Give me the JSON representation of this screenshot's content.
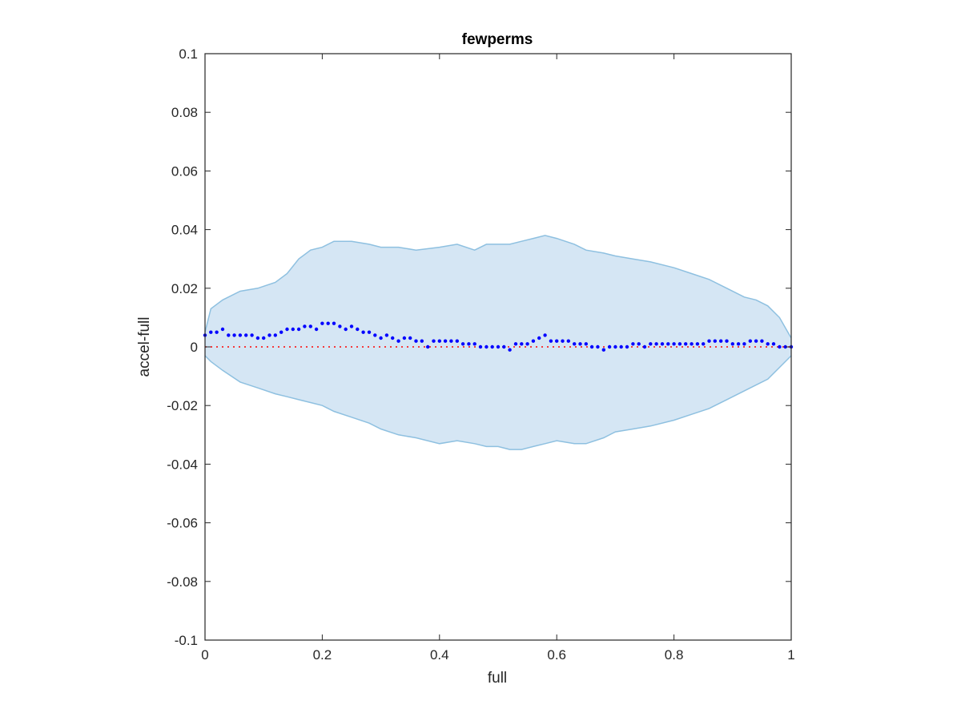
{
  "chart_data": {
    "type": "scatter",
    "title": "fewperms",
    "xlabel": "full",
    "ylabel": "accel-full",
    "xlim": [
      0,
      1
    ],
    "ylim": [
      -0.1,
      0.1
    ],
    "xticks": [
      0,
      0.2,
      0.4,
      0.6,
      0.8,
      1
    ],
    "xtick_labels": [
      "0",
      "0.2",
      "0.4",
      "0.6",
      "0.8",
      "1"
    ],
    "yticks": [
      0.1,
      0.08,
      0.06,
      0.04,
      0.02,
      0,
      -0.02,
      -0.04,
      -0.06,
      -0.08,
      -0.1
    ],
    "ytick_labels": [
      "0.1",
      "0.08",
      "0.06",
      "0.04",
      "0.02",
      "0",
      "-0.02",
      "-0.04",
      "-0.06",
      "-0.08",
      "-0.1"
    ],
    "grid": false,
    "legend": "none",
    "colors": {
      "points": "#0000ff",
      "band_fill": "#d5e6f4",
      "band_edge": "#8ec0e0",
      "reference_line": "#ff0000",
      "axes": "#262626"
    },
    "reference_line": {
      "y": 0,
      "style": "dotted"
    },
    "envelope": {
      "x": [
        0.0,
        0.01,
        0.03,
        0.06,
        0.09,
        0.12,
        0.14,
        0.16,
        0.18,
        0.2,
        0.22,
        0.25,
        0.28,
        0.3,
        0.33,
        0.36,
        0.4,
        0.43,
        0.46,
        0.48,
        0.5,
        0.52,
        0.54,
        0.56,
        0.58,
        0.6,
        0.63,
        0.65,
        0.68,
        0.7,
        0.73,
        0.76,
        0.8,
        0.83,
        0.86,
        0.89,
        0.92,
        0.94,
        0.96,
        0.98,
        1.0
      ],
      "upper": [
        0.005,
        0.013,
        0.016,
        0.019,
        0.02,
        0.022,
        0.025,
        0.03,
        0.033,
        0.034,
        0.036,
        0.036,
        0.035,
        0.034,
        0.034,
        0.033,
        0.034,
        0.035,
        0.033,
        0.035,
        0.035,
        0.035,
        0.036,
        0.037,
        0.038,
        0.037,
        0.035,
        0.033,
        0.032,
        0.031,
        0.03,
        0.029,
        0.027,
        0.025,
        0.023,
        0.02,
        0.017,
        0.016,
        0.014,
        0.01,
        0.003
      ],
      "lower": [
        -0.003,
        -0.005,
        -0.008,
        -0.012,
        -0.014,
        -0.016,
        -0.017,
        -0.018,
        -0.019,
        -0.02,
        -0.022,
        -0.024,
        -0.026,
        -0.028,
        -0.03,
        -0.031,
        -0.033,
        -0.032,
        -0.033,
        -0.034,
        -0.034,
        -0.035,
        -0.035,
        -0.034,
        -0.033,
        -0.032,
        -0.033,
        -0.033,
        -0.031,
        -0.029,
        -0.028,
        -0.027,
        -0.025,
        -0.023,
        -0.021,
        -0.018,
        -0.015,
        -0.013,
        -0.011,
        -0.007,
        -0.003
      ]
    },
    "series": [
      {
        "x": [
          0.0,
          0.01,
          0.02,
          0.03,
          0.04,
          0.05,
          0.06,
          0.07,
          0.08,
          0.09,
          0.1,
          0.11,
          0.12,
          0.13,
          0.14,
          0.15,
          0.16,
          0.17,
          0.18,
          0.19,
          0.2,
          0.21,
          0.22,
          0.23,
          0.24,
          0.25,
          0.26,
          0.27,
          0.28,
          0.29,
          0.3,
          0.31,
          0.32,
          0.33,
          0.34,
          0.35,
          0.36,
          0.37,
          0.38,
          0.39,
          0.4,
          0.41,
          0.42,
          0.43,
          0.44,
          0.45,
          0.46,
          0.47,
          0.48,
          0.49,
          0.5,
          0.51,
          0.52,
          0.53,
          0.54,
          0.55,
          0.56,
          0.57,
          0.58,
          0.59,
          0.6,
          0.61,
          0.62,
          0.63,
          0.64,
          0.65,
          0.66,
          0.67,
          0.68,
          0.69,
          0.7,
          0.71,
          0.72,
          0.73,
          0.74,
          0.75,
          0.76,
          0.77,
          0.78,
          0.79,
          0.8,
          0.81,
          0.82,
          0.83,
          0.84,
          0.85,
          0.86,
          0.87,
          0.88,
          0.89,
          0.9,
          0.91,
          0.92,
          0.93,
          0.94,
          0.95,
          0.96,
          0.97,
          0.98,
          0.99,
          1.0
        ],
        "y": [
          0.004,
          0.005,
          0.005,
          0.006,
          0.004,
          0.004,
          0.004,
          0.004,
          0.004,
          0.003,
          0.003,
          0.004,
          0.004,
          0.005,
          0.006,
          0.006,
          0.006,
          0.007,
          0.007,
          0.006,
          0.008,
          0.008,
          0.008,
          0.007,
          0.006,
          0.007,
          0.006,
          0.005,
          0.005,
          0.004,
          0.003,
          0.004,
          0.003,
          0.002,
          0.003,
          0.003,
          0.002,
          0.002,
          0.0,
          0.002,
          0.002,
          0.002,
          0.002,
          0.002,
          0.001,
          0.001,
          0.001,
          0.0,
          0.0,
          0.0,
          0.0,
          0.0,
          -0.001,
          0.001,
          0.001,
          0.001,
          0.002,
          0.003,
          0.004,
          0.002,
          0.002,
          0.002,
          0.002,
          0.001,
          0.001,
          0.001,
          0.0,
          0.0,
          -0.001,
          0.0,
          0.0,
          0.0,
          0.0,
          0.001,
          0.001,
          0.0,
          0.001,
          0.001,
          0.001,
          0.001,
          0.001,
          0.001,
          0.001,
          0.001,
          0.001,
          0.001,
          0.002,
          0.002,
          0.002,
          0.002,
          0.001,
          0.001,
          0.001,
          0.002,
          0.002,
          0.002,
          0.001,
          0.001,
          0.0,
          0.0,
          0.0
        ]
      }
    ]
  }
}
